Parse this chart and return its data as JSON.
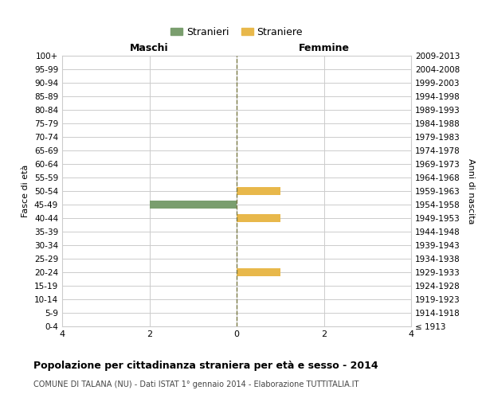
{
  "age_groups": [
    "100+",
    "95-99",
    "90-94",
    "85-89",
    "80-84",
    "75-79",
    "70-74",
    "65-69",
    "60-64",
    "55-59",
    "50-54",
    "45-49",
    "40-44",
    "35-39",
    "30-34",
    "25-29",
    "20-24",
    "15-19",
    "10-14",
    "5-9",
    "0-4"
  ],
  "birth_years": [
    "≤ 1913",
    "1914-1918",
    "1919-1923",
    "1924-1928",
    "1929-1933",
    "1934-1938",
    "1939-1943",
    "1944-1948",
    "1949-1953",
    "1954-1958",
    "1959-1963",
    "1964-1968",
    "1969-1973",
    "1974-1978",
    "1979-1983",
    "1984-1988",
    "1989-1993",
    "1994-1998",
    "1999-2003",
    "2004-2008",
    "2009-2013"
  ],
  "males": [
    0,
    0,
    0,
    0,
    0,
    0,
    0,
    0,
    0,
    0,
    0,
    2,
    0,
    0,
    0,
    0,
    0,
    0,
    0,
    0,
    0
  ],
  "females": [
    0,
    0,
    0,
    0,
    0,
    0,
    0,
    0,
    0,
    0,
    1,
    0,
    1,
    0,
    0,
    0,
    1,
    0,
    0,
    0,
    0
  ],
  "male_color": "#7a9e6e",
  "female_color": "#e8b84b",
  "title": "Popolazione per cittadinanza straniera per età e sesso - 2014",
  "subtitle": "COMUNE DI TALANA (NU) - Dati ISTAT 1° gennaio 2014 - Elaborazione TUTTITALIA.IT",
  "legend_male": "Stranieri",
  "legend_female": "Straniere",
  "label_left": "Maschi",
  "label_right": "Femmine",
  "ylabel_left": "Fasce di età",
  "ylabel_right": "Anni di nascita",
  "xlim": 4,
  "background_color": "#ffffff",
  "grid_color": "#cccccc",
  "center_line_color": "#7a7a44"
}
